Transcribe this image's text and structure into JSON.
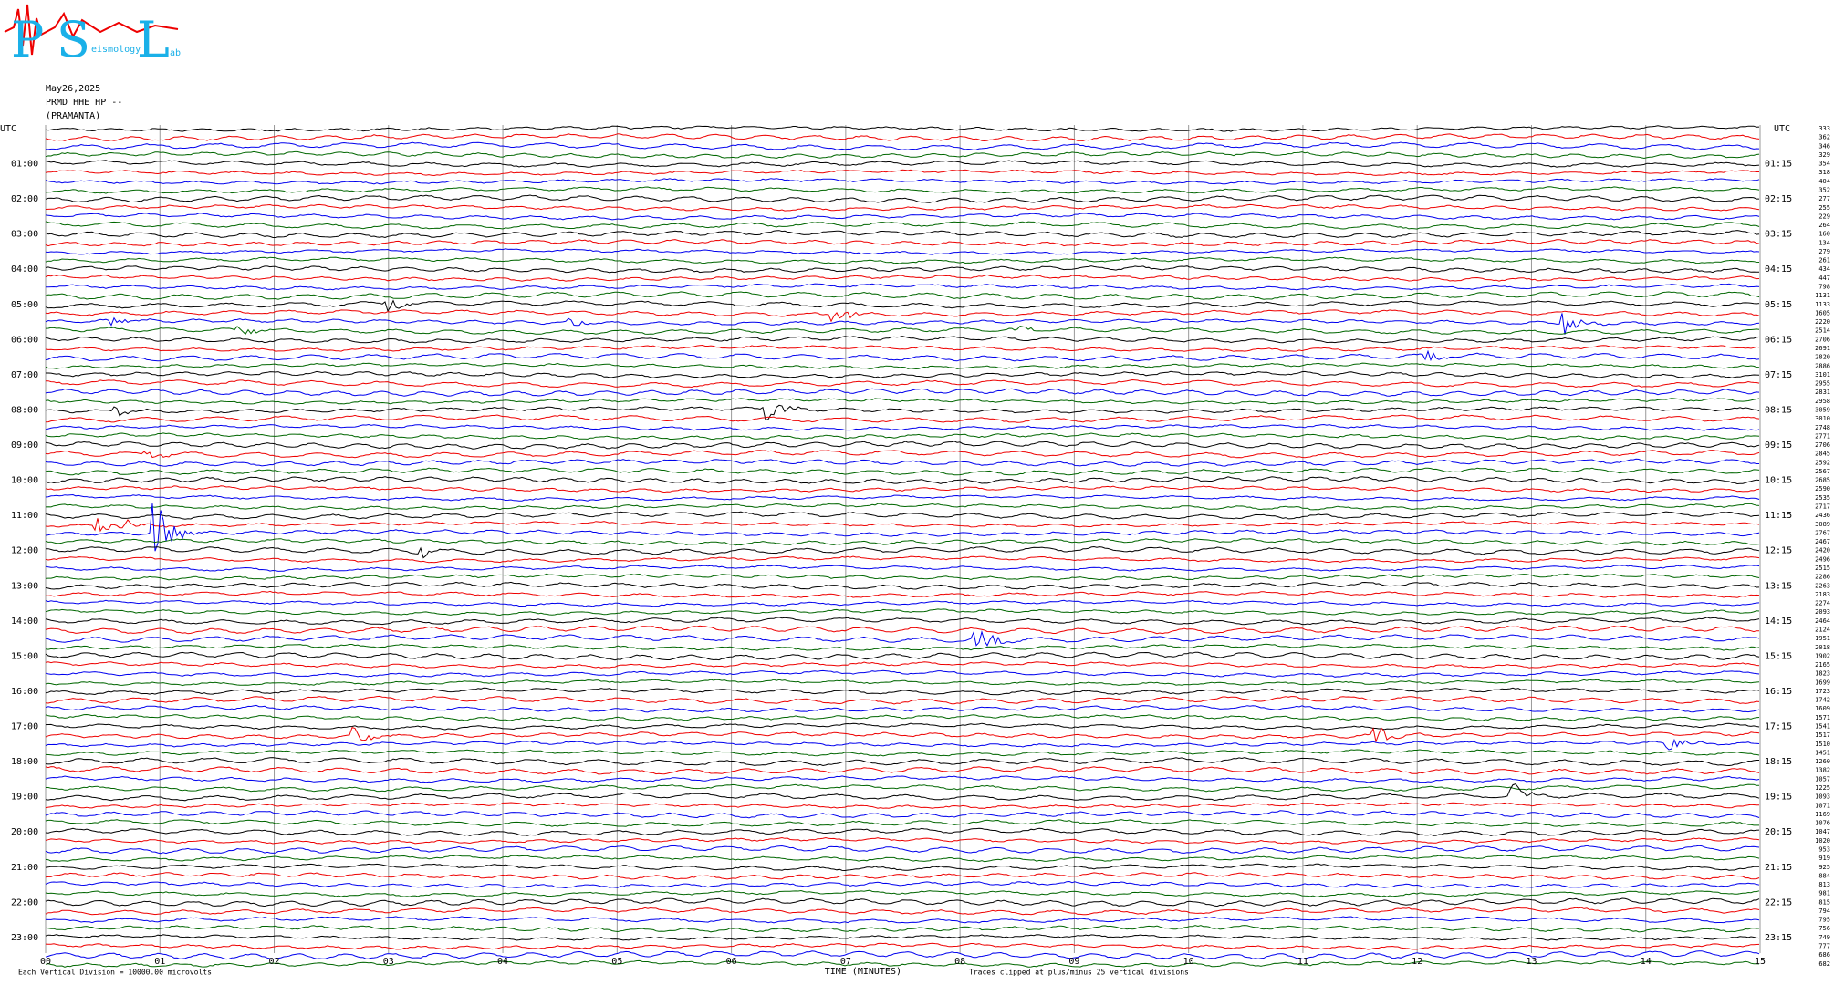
{
  "logo": {
    "letters": [
      "P",
      "S",
      "L"
    ],
    "words": [
      "eismology",
      "ab"
    ]
  },
  "header": {
    "date": "May26,2025",
    "station": "PRMD HHE HP --",
    "site": "(PRAMANTA)"
  },
  "left_axis": {
    "title": "UTC",
    "labels": [
      "01:00",
      "02:00",
      "03:00",
      "04:00",
      "05:00",
      "06:00",
      "07:00",
      "08:00",
      "09:00",
      "10:00",
      "11:00",
      "12:00",
      "13:00",
      "14:00",
      "15:00",
      "16:00",
      "17:00",
      "18:00",
      "19:00",
      "20:00",
      "21:00",
      "22:00",
      "23:00"
    ]
  },
  "right_axis": {
    "title": "UTC",
    "labels": [
      "01:15",
      "02:15",
      "03:15",
      "04:15",
      "05:15",
      "06:15",
      "07:15",
      "08:15",
      "09:15",
      "10:15",
      "11:15",
      "12:15",
      "13:15",
      "14:15",
      "15:15",
      "16:15",
      "17:15",
      "18:15",
      "19:15",
      "20:15",
      "21:15",
      "22:15",
      "23:15"
    ]
  },
  "trace_levels": [
    333,
    362,
    346,
    329,
    354,
    318,
    404,
    352,
    277,
    255,
    229,
    264,
    160,
    134,
    279,
    261,
    434,
    447,
    798,
    1131,
    1133,
    1605,
    2220,
    2514,
    2706,
    2691,
    2820,
    2886,
    3101,
    2955,
    2831,
    2958,
    3059,
    3010,
    2748,
    2771,
    2706,
    2845,
    2592,
    2567,
    2685,
    2590,
    2535,
    2717,
    2436,
    3089,
    2767,
    2467,
    2420,
    2496,
    2515,
    2286,
    2263,
    2183,
    2274,
    2093,
    2464,
    2124,
    1951,
    2018,
    1902,
    2165,
    1823,
    1699,
    1723,
    1742,
    1609,
    1571,
    1541,
    1517,
    1510,
    1451,
    1260,
    1382,
    1057,
    1225,
    1093,
    1071,
    1169,
    1076,
    1047,
    1020,
    953,
    919,
    925,
    884,
    813,
    981,
    815,
    794,
    795,
    756,
    749,
    777,
    686,
    682
  ],
  "x_axis": {
    "labels": [
      "00",
      "01",
      "02",
      "03",
      "04",
      "05",
      "06",
      "07",
      "08",
      "09",
      "10",
      "11",
      "12",
      "13",
      "14",
      "15"
    ],
    "title": "TIME (MINUTES)"
  },
  "footer": {
    "scale": "Each Vertical Division = 10000.00 microvolts",
    "clip": "Traces clipped at plus/minus 25 vertical divisions"
  }
}
